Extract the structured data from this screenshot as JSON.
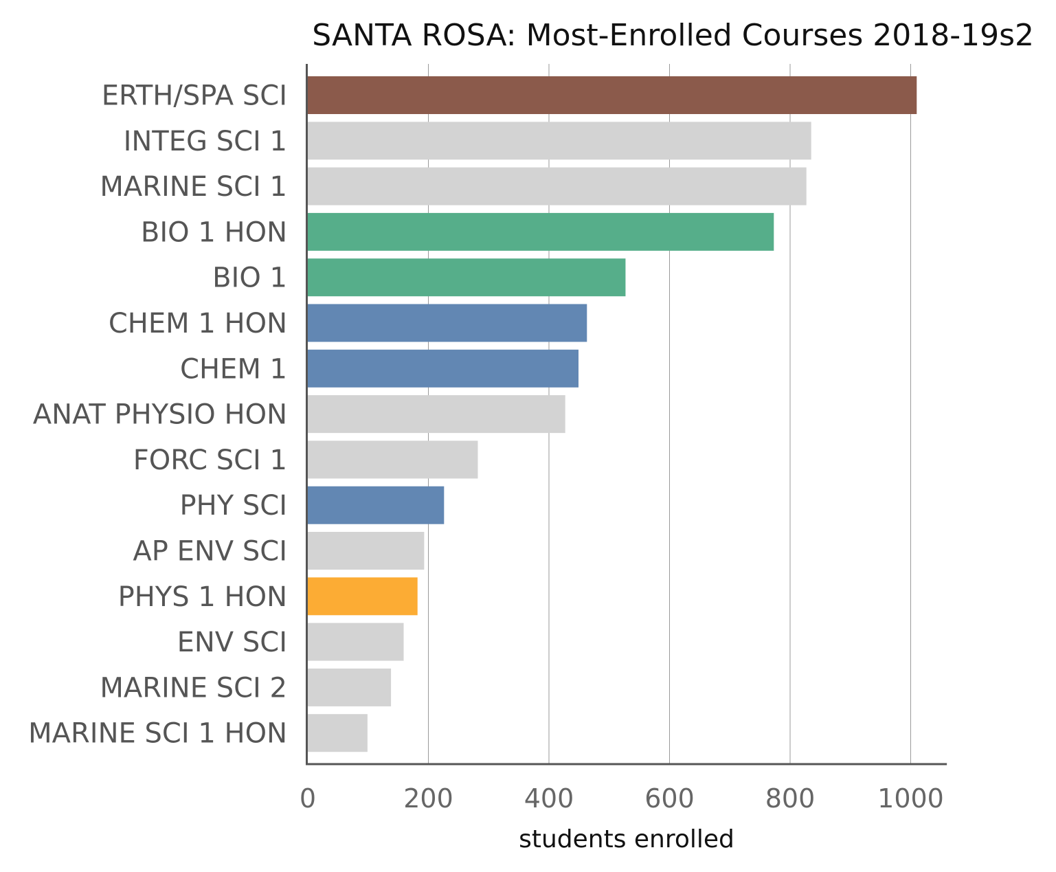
{
  "chart_data": {
    "type": "bar",
    "orientation": "horizontal",
    "title": "SANTA ROSA: Most-Enrolled Courses 2018-19s2",
    "xlabel": "students enrolled",
    "ylabel": "",
    "xlim": [
      0,
      1060
    ],
    "xticks": [
      0,
      200,
      400,
      600,
      800,
      1000
    ],
    "grid": "vertical",
    "categories": [
      "ERTH/SPA SCI",
      "INTEG SCI 1",
      "MARINE SCI 1",
      "BIO 1 HON",
      "BIO 1",
      "CHEM 1 HON",
      "CHEM 1",
      "ANAT PHYSIO HON",
      "FORC SCI 1",
      "PHY SCI",
      "AP ENV SCI",
      "PHYS 1 HON",
      "ENV SCI",
      "MARINE SCI 2",
      "MARINE SCI 1 HON"
    ],
    "values": [
      1010,
      835,
      827,
      773,
      527,
      463,
      449,
      427,
      282,
      226,
      193,
      182,
      159,
      138,
      99
    ],
    "colors": [
      "#8b5a4b",
      "#d3d3d3",
      "#d3d3d3",
      "#56ae8a",
      "#56ae8a",
      "#6287b3",
      "#6287b3",
      "#d3d3d3",
      "#d3d3d3",
      "#6287b3",
      "#d3d3d3",
      "#fcac34",
      "#d3d3d3",
      "#d3d3d3",
      "#d3d3d3"
    ]
  }
}
